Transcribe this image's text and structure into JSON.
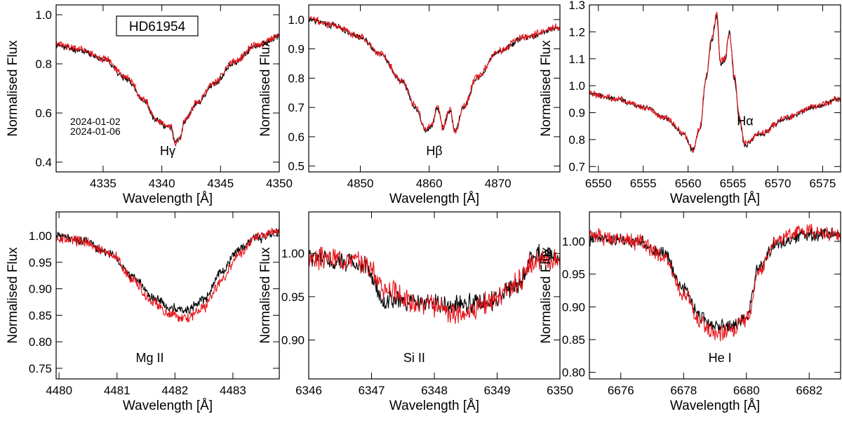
{
  "figure": {
    "star": "HD61954",
    "legend": [
      {
        "date": "2024-01-02",
        "color": "#000000"
      },
      {
        "date": "2024-01-06",
        "color": "#e8141b"
      }
    ]
  },
  "chart_data": [
    {
      "type": "line",
      "line": "Hγ",
      "xlabel": "Wavelength [Å]",
      "ylabel": "Normalised Flux",
      "xlim": [
        4331,
        4350
      ],
      "ylim": [
        0.36,
        1.04
      ],
      "xticks": [
        4335,
        4340,
        4345,
        4350
      ],
      "xtick_labels": [
        "4335",
        "4340",
        "4345",
        "4350"
      ],
      "yticks": [
        0.4,
        0.6,
        0.8,
        1.0
      ],
      "ytick_labels": [
        "0.4",
        "0.6",
        "0.8",
        "1.0"
      ],
      "series": [
        {
          "name": "2024-01-02",
          "color": "#000000",
          "noise": 0.01,
          "seed": 11,
          "x": [
            4331,
            4333,
            4335,
            4337,
            4338.5,
            4339.5,
            4340.3,
            4340.8,
            4341.1,
            4341.5,
            4342,
            4343,
            4344.5,
            4346,
            4348,
            4350
          ],
          "y": [
            0.875,
            0.855,
            0.82,
            0.74,
            0.65,
            0.57,
            0.545,
            0.545,
            0.48,
            0.5,
            0.57,
            0.64,
            0.72,
            0.8,
            0.87,
            0.91
          ]
        },
        {
          "name": "2024-01-06",
          "color": "#e8141b",
          "noise": 0.012,
          "seed": 23,
          "x": [
            4331,
            4333,
            4335,
            4337,
            4338.5,
            4339.5,
            4340.3,
            4340.8,
            4341.1,
            4341.5,
            4342,
            4343,
            4344.5,
            4346,
            4348,
            4350
          ],
          "y": [
            0.88,
            0.86,
            0.825,
            0.745,
            0.655,
            0.575,
            0.55,
            0.55,
            0.47,
            0.5,
            0.575,
            0.645,
            0.725,
            0.805,
            0.875,
            0.915
          ]
        }
      ]
    },
    {
      "type": "line",
      "line": "Hβ",
      "xlabel": "Wavelength [Å]",
      "ylabel": "Normalised Flux",
      "xlim": [
        4842.5,
        4879
      ],
      "ylim": [
        0.48,
        1.05
      ],
      "xticks": [
        4850,
        4860,
        4870
      ],
      "xtick_labels": [
        "4850",
        "4860",
        "4870"
      ],
      "yticks": [
        0.5,
        0.6,
        0.7,
        0.8,
        0.9,
        1.0
      ],
      "ytick_labels": [
        "0.5",
        "0.6",
        "0.7",
        "0.8",
        "0.9",
        "1.0"
      ],
      "series": [
        {
          "name": "2024-01-02",
          "color": "#000000",
          "noise": 0.008,
          "seed": 31,
          "x": [
            4842.5,
            4846,
            4850,
            4853,
            4856,
            4858,
            4859.5,
            4860.5,
            4861.2,
            4862,
            4863,
            4863.8,
            4865,
            4867,
            4870,
            4874,
            4879
          ],
          "y": [
            1.0,
            0.98,
            0.94,
            0.88,
            0.79,
            0.7,
            0.62,
            0.64,
            0.7,
            0.63,
            0.69,
            0.62,
            0.7,
            0.8,
            0.89,
            0.94,
            0.97
          ]
        },
        {
          "name": "2024-01-06",
          "color": "#e8141b",
          "noise": 0.01,
          "seed": 37,
          "x": [
            4842.5,
            4846,
            4850,
            4853,
            4856,
            4858,
            4859.5,
            4860.5,
            4861.2,
            4862,
            4863,
            4863.8,
            4865,
            4867,
            4870,
            4874,
            4879
          ],
          "y": [
            1.0,
            0.982,
            0.942,
            0.882,
            0.792,
            0.705,
            0.625,
            0.645,
            0.71,
            0.63,
            0.7,
            0.615,
            0.705,
            0.805,
            0.893,
            0.943,
            0.972
          ]
        }
      ]
    },
    {
      "type": "line",
      "line": "Hα",
      "xlabel": "Wavelength [Å]",
      "ylabel": "Normalised Flux",
      "xlim": [
        6549,
        6577
      ],
      "ylim": [
        0.68,
        1.3
      ],
      "xticks": [
        6550,
        6555,
        6560,
        6565,
        6570,
        6575
      ],
      "xtick_labels": [
        "6550",
        "6555",
        "6560",
        "6565",
        "6570",
        "6575"
      ],
      "yticks": [
        0.7,
        0.8,
        0.9,
        1.0,
        1.1,
        1.2,
        1.3
      ],
      "ytick_labels": [
        "0.7",
        "0.8",
        "0.9",
        "1.0",
        "1.1",
        "1.2",
        "1.3"
      ],
      "series": [
        {
          "name": "2024-01-02",
          "color": "#000000",
          "noise": 0.008,
          "seed": 41,
          "x": [
            6549,
            6552,
            6555,
            6557.5,
            6559.5,
            6560.5,
            6561.3,
            6562,
            6562.6,
            6563.2,
            6563.6,
            6564.1,
            6564.6,
            6565.2,
            6565.7,
            6566.3,
            6568,
            6571,
            6574,
            6577
          ],
          "y": [
            0.97,
            0.95,
            0.92,
            0.88,
            0.82,
            0.76,
            0.83,
            1.02,
            1.16,
            1.26,
            1.08,
            1.09,
            1.2,
            1.02,
            0.88,
            0.78,
            0.82,
            0.88,
            0.92,
            0.95
          ]
        },
        {
          "name": "2024-01-06",
          "color": "#e8141b",
          "noise": 0.01,
          "seed": 43,
          "x": [
            6549,
            6552,
            6555,
            6557.5,
            6559.5,
            6560.5,
            6561.3,
            6562,
            6562.6,
            6563.2,
            6563.6,
            6564.1,
            6564.6,
            6565.2,
            6565.7,
            6566.3,
            6568,
            6571,
            6574,
            6577
          ],
          "y": [
            0.97,
            0.952,
            0.922,
            0.882,
            0.823,
            0.762,
            0.84,
            1.03,
            1.17,
            1.27,
            1.09,
            1.1,
            1.19,
            1.03,
            0.89,
            0.785,
            0.822,
            0.882,
            0.922,
            0.952
          ]
        }
      ]
    },
    {
      "type": "line",
      "line": "Mg II",
      "xlabel": "Wavelength [Å]",
      "ylabel": "Normalised Flux",
      "xlim": [
        4479.95,
        4483.8
      ],
      "ylim": [
        0.73,
        1.045
      ],
      "xticks": [
        4480,
        4481,
        4482,
        4483
      ],
      "xtick_labels": [
        "4480",
        "4481",
        "4482",
        "4483"
      ],
      "yticks": [
        0.75,
        0.8,
        0.85,
        0.9,
        0.95,
        1.0
      ],
      "ytick_labels": [
        "0.75",
        "0.80",
        "0.85",
        "0.90",
        "0.95",
        "1.00"
      ],
      "series": [
        {
          "name": "2024-01-02",
          "color": "#000000",
          "noise": 0.007,
          "seed": 51,
          "x": [
            4479.95,
            4480.4,
            4480.9,
            4481.3,
            4481.6,
            4481.9,
            4482.2,
            4482.5,
            4482.8,
            4483.1,
            4483.4,
            4483.8
          ],
          "y": [
            1.0,
            0.99,
            0.965,
            0.92,
            0.885,
            0.865,
            0.86,
            0.88,
            0.93,
            0.975,
            0.995,
            1.005
          ]
        },
        {
          "name": "2024-01-06",
          "color": "#e8141b",
          "noise": 0.008,
          "seed": 53,
          "x": [
            4479.95,
            4480.4,
            4480.9,
            4481.3,
            4481.6,
            4481.9,
            4482.2,
            4482.5,
            4482.8,
            4483.1,
            4483.4,
            4483.8
          ],
          "y": [
            0.995,
            0.99,
            0.965,
            0.915,
            0.875,
            0.852,
            0.845,
            0.865,
            0.915,
            0.965,
            0.998,
            1.01
          ]
        }
      ]
    },
    {
      "type": "line",
      "line": "Si II",
      "xlabel": "Wavelength [Å]",
      "ylabel": "Normalised Flux",
      "xlim": [
        6346,
        6350
      ],
      "ylim": [
        0.855,
        1.048
      ],
      "xticks": [
        6346,
        6347,
        6348,
        6349,
        6350
      ],
      "xtick_labels": [
        "6346",
        "6347",
        "6348",
        "6349",
        "6350"
      ],
      "yticks": [
        0.9,
        0.95,
        1.0
      ],
      "ytick_labels": [
        "0.90",
        "0.95",
        "1.00"
      ],
      "series": [
        {
          "name": "2024-01-02",
          "color": "#000000",
          "noise": 0.009,
          "seed": 61,
          "x": [
            6346,
            6346.5,
            6346.9,
            6347.2,
            6347.8,
            6348.4,
            6348.9,
            6349.3,
            6349.6,
            6350
          ],
          "y": [
            0.995,
            0.99,
            0.985,
            0.945,
            0.945,
            0.94,
            0.945,
            0.96,
            1.0,
            0.995
          ]
        },
        {
          "name": "2024-01-06",
          "color": "#e8141b",
          "noise": 0.01,
          "seed": 67,
          "x": [
            6346,
            6346.5,
            6346.9,
            6347.2,
            6347.8,
            6348.4,
            6348.9,
            6349.3,
            6349.6,
            6350
          ],
          "y": [
            0.995,
            0.995,
            0.99,
            0.96,
            0.94,
            0.93,
            0.945,
            0.965,
            0.99,
            0.995
          ]
        }
      ]
    },
    {
      "type": "line",
      "line": "He I",
      "xlabel": "Wavelength [Å]",
      "ylabel": "Normalised Flux",
      "xlim": [
        6675,
        6683
      ],
      "ylim": [
        0.79,
        1.045
      ],
      "xticks": [
        6676,
        6678,
        6680,
        6682
      ],
      "xtick_labels": [
        "6676",
        "6678",
        "6680",
        "6682"
      ],
      "yticks": [
        0.8,
        0.85,
        0.9,
        0.95,
        1.0
      ],
      "ytick_labels": [
        "0.80",
        "0.85",
        "0.90",
        "0.95",
        "1.00"
      ],
      "series": [
        {
          "name": "2024-01-02",
          "color": "#000000",
          "noise": 0.008,
          "seed": 71,
          "x": [
            6675,
            6676.5,
            6677.3,
            6678,
            6678.5,
            6679,
            6679.5,
            6680,
            6680.4,
            6681,
            6682,
            6683
          ],
          "y": [
            1.005,
            1.0,
            0.985,
            0.93,
            0.885,
            0.87,
            0.87,
            0.885,
            0.96,
            1.0,
            1.01,
            1.01
          ]
        },
        {
          "name": "2024-01-06",
          "color": "#e8141b",
          "noise": 0.01,
          "seed": 73,
          "x": [
            6675,
            6676.5,
            6677.3,
            6678,
            6678.5,
            6679,
            6679.5,
            6680,
            6680.4,
            6681,
            6682,
            6683
          ],
          "y": [
            1.008,
            1.0,
            0.98,
            0.92,
            0.875,
            0.86,
            0.865,
            0.88,
            0.955,
            1.005,
            1.015,
            1.012
          ]
        }
      ]
    }
  ]
}
